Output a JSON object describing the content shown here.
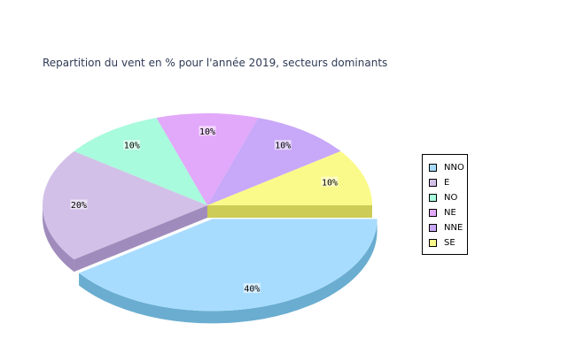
{
  "chart_data": {
    "type": "pie",
    "title": "Repartition du vent en % pour l'année 2019, secteurs dominants",
    "slices": [
      {
        "name": "NNO",
        "value": 40,
        "label": "40%",
        "color": "#a8dcff",
        "side": "#6aadd0",
        "exploded": true
      },
      {
        "name": "E",
        "value": 20,
        "label": "20%",
        "color": "#d2c0e8",
        "side": "#a08cbc",
        "exploded": false
      },
      {
        "name": "NO",
        "value": 10,
        "label": "10%",
        "color": "#a8fbdc",
        "side": "#74c4a8",
        "exploded": false
      },
      {
        "name": "NE",
        "value": 10,
        "label": "10%",
        "color": "#e2a8fa",
        "side": "#ac78c6",
        "exploded": false
      },
      {
        "name": "NNE",
        "value": 10,
        "label": "10%",
        "color": "#c8a8f8",
        "side": "#9474c4",
        "exploded": false
      },
      {
        "name": "SE",
        "value": 10,
        "label": "10%",
        "color": "#fafa8a",
        "side": "#cccc56",
        "exploded": false
      }
    ],
    "legend": {
      "placement": "right"
    }
  }
}
